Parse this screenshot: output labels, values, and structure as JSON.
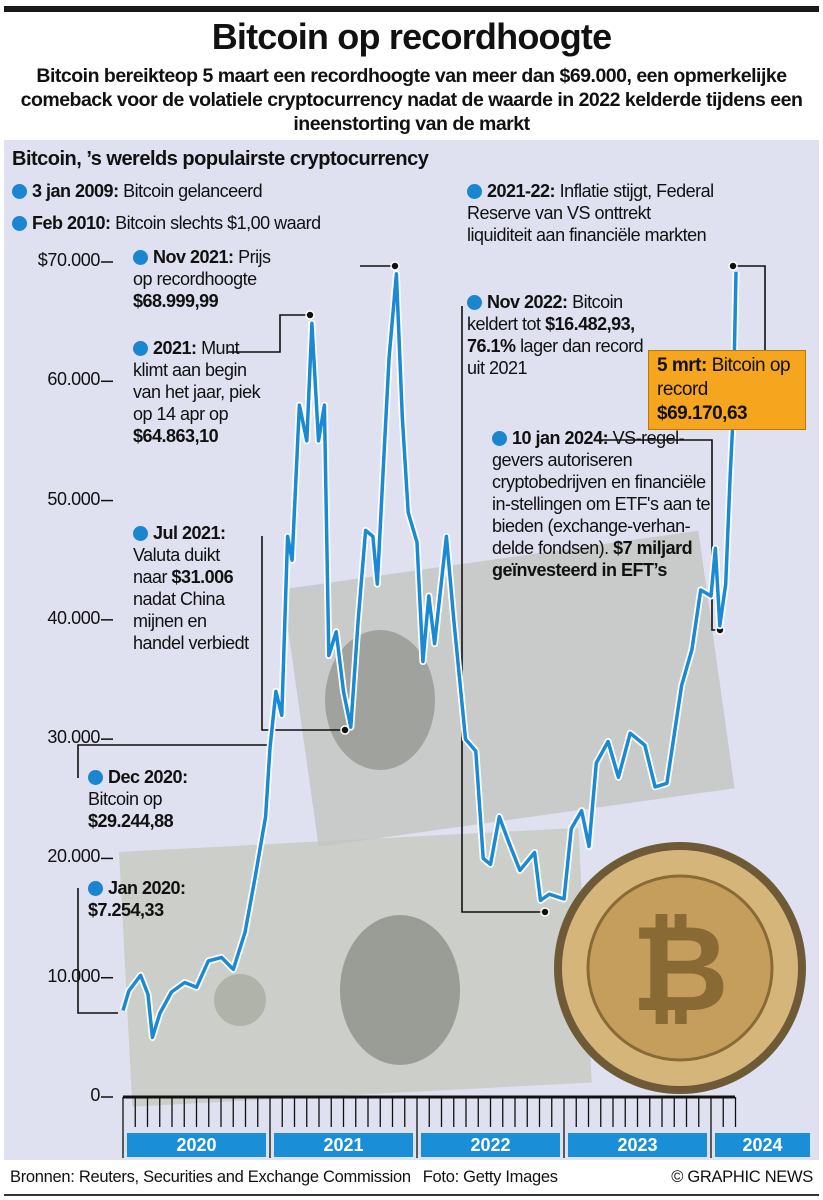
{
  "header": {
    "title": "Bitcoin op recordhoogte",
    "subtitle": "Bitcoin bereikteop 5 maart een recordhoogte van meer dan $69.000, een opmerkelijke comeback voor de volatiele cryptocurrency nadat de waarde in 2022 kelderde tijdens een ineenstorting van de markt"
  },
  "panel_title": "Bitcoin, ’s werelds populairste cryptocurrency",
  "annotations": {
    "launch": {
      "head": "3 jan 2009:",
      "body": "Bitcoin gelanceerd"
    },
    "feb2010": {
      "head": "Feb 2010:",
      "body": "Bitcoin slechts $1,00 waard"
    },
    "nov2021": {
      "head": "Nov 2021:",
      "body": "Prijs op recordhoogte",
      "value": "$68.999,99"
    },
    "y2021": {
      "head": "2021:",
      "body": "Munt klimt aan begin van het jaar, piek op 14 apr op",
      "value": "$64.863,10"
    },
    "jul2021": {
      "head": "Jul 2021:",
      "body": "Valuta duikt naar",
      "value": "$31.006",
      "body2": "nadat China mijnen en handel verbiedt"
    },
    "dec2020": {
      "head": "Dec 2020:",
      "body": "Bitcoin op",
      "value": "$29.244,88"
    },
    "jan2020": {
      "head": "Jan 2020:",
      "value": "$7.254,33"
    },
    "y2122": {
      "head": "2021-22:",
      "body": "Inflatie stijgt, Federal Reserve van VS onttrekt liquiditeit aan financiële markten"
    },
    "nov2022": {
      "head": "Nov 2022:",
      "body": "Bitcoin keldert tot",
      "value": "$16.482,93,",
      "value2": "76.1%",
      "body2": "lager dan record uit 2021"
    },
    "jan2024": {
      "head": "10 jan 2024:",
      "body": "VS-regel-gevers autoriseren cryptobedrijven en financiële in-stellingen om ETF's aan te bieden (exchange-verhan-delde fondsen).",
      "value": "$7 miljard geïnvesteerd in EFT’s"
    },
    "mar2024": {
      "head": "5 mrt:",
      "body": "Bitcoin op record",
      "value": "$69.170,63"
    }
  },
  "colors": {
    "line": "#1a8ad4",
    "year_bar": "#1a8fd8",
    "highlight": "#f5a61e",
    "panel": "#dfe1f1"
  },
  "footer": {
    "sources": "Bronnen: Reuters, Securities and Exchange Commission",
    "photo": "Foto: Getty Images",
    "credit": "© GRAPHIC NEWS"
  },
  "chart_data": {
    "type": "line",
    "title": "Bitcoin, ’s werelds populairste cryptocurrency",
    "xlabel": "",
    "ylabel": "USD",
    "ylim": [
      0,
      70000
    ],
    "xlim": [
      2020.0,
      2024.2
    ],
    "y_ticks": [
      {
        "v": 70000,
        "label": "$70.000"
      },
      {
        "v": 60000,
        "label": "60.000"
      },
      {
        "v": 50000,
        "label": "50.000"
      },
      {
        "v": 40000,
        "label": "40.000"
      },
      {
        "v": 30000,
        "label": "30.000"
      },
      {
        "v": 20000,
        "label": "20.000"
      },
      {
        "v": 10000,
        "label": "10.000"
      },
      {
        "v": 0,
        "label": "0"
      }
    ],
    "x_categories": [
      "2020",
      "2021",
      "2022",
      "2023",
      "2024"
    ],
    "series": [
      {
        "name": "Bitcoin",
        "points": [
          [
            2020.0,
            7254
          ],
          [
            2020.04,
            8900
          ],
          [
            2020.12,
            10200
          ],
          [
            2020.17,
            8600
          ],
          [
            2020.2,
            5000
          ],
          [
            2020.25,
            7000
          ],
          [
            2020.33,
            8800
          ],
          [
            2020.42,
            9600
          ],
          [
            2020.5,
            9200
          ],
          [
            2020.58,
            11400
          ],
          [
            2020.67,
            11700
          ],
          [
            2020.75,
            10700
          ],
          [
            2020.83,
            13800
          ],
          [
            2020.9,
            18500
          ],
          [
            2020.97,
            23500
          ],
          [
            2021.0,
            29245
          ],
          [
            2021.04,
            34000
          ],
          [
            2021.08,
            32000
          ],
          [
            2021.12,
            47000
          ],
          [
            2021.15,
            45000
          ],
          [
            2021.2,
            58000
          ],
          [
            2021.25,
            55000
          ],
          [
            2021.285,
            64863
          ],
          [
            2021.33,
            55000
          ],
          [
            2021.37,
            58000
          ],
          [
            2021.4,
            37000
          ],
          [
            2021.45,
            39000
          ],
          [
            2021.5,
            34000
          ],
          [
            2021.55,
            31006
          ],
          [
            2021.6,
            40000
          ],
          [
            2021.65,
            47500
          ],
          [
            2021.7,
            47000
          ],
          [
            2021.73,
            43000
          ],
          [
            2021.78,
            55000
          ],
          [
            2021.81,
            62000
          ],
          [
            2021.86,
            68999
          ],
          [
            2021.9,
            57000
          ],
          [
            2021.94,
            49000
          ],
          [
            2022.0,
            46500
          ],
          [
            2022.04,
            36500
          ],
          [
            2022.08,
            42000
          ],
          [
            2022.12,
            38000
          ],
          [
            2022.2,
            47000
          ],
          [
            2022.25,
            40000
          ],
          [
            2022.33,
            30000
          ],
          [
            2022.4,
            29000
          ],
          [
            2022.45,
            20000
          ],
          [
            2022.5,
            19500
          ],
          [
            2022.56,
            23500
          ],
          [
            2022.62,
            21500
          ],
          [
            2022.7,
            19000
          ],
          [
            2022.8,
            20500
          ],
          [
            2022.84,
            16482
          ],
          [
            2022.9,
            17000
          ],
          [
            2023.0,
            16600
          ],
          [
            2023.05,
            22500
          ],
          [
            2023.12,
            24000
          ],
          [
            2023.17,
            21000
          ],
          [
            2023.22,
            28000
          ],
          [
            2023.3,
            29800
          ],
          [
            2023.37,
            26800
          ],
          [
            2023.45,
            30500
          ],
          [
            2023.55,
            29500
          ],
          [
            2023.62,
            26000
          ],
          [
            2023.7,
            26300
          ],
          [
            2023.8,
            34500
          ],
          [
            2023.87,
            37500
          ],
          [
            2023.93,
            42500
          ],
          [
            2024.0,
            42000
          ],
          [
            2024.03,
            46000
          ],
          [
            2024.06,
            39500
          ],
          [
            2024.1,
            43000
          ],
          [
            2024.13,
            52000
          ],
          [
            2024.15,
            57000
          ],
          [
            2024.17,
            69171
          ]
        ]
      }
    ]
  }
}
